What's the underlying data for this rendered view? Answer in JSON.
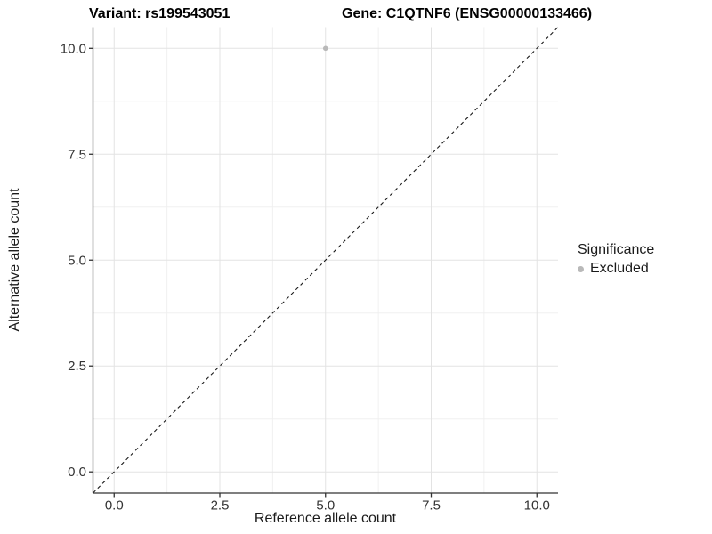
{
  "header": {
    "left_title": "Variant: rs199543051",
    "right_title": "Gene: C1QTNF6 (ENSG00000133466)"
  },
  "chart_data": {
    "type": "scatter",
    "xlabel": "Reference allele count",
    "ylabel": "Alternative allele count",
    "xlim": [
      -0.5,
      10.5
    ],
    "ylim": [
      -0.5,
      10.5
    ],
    "x_ticks": [
      0,
      2.5,
      5,
      7.5,
      10
    ],
    "y_ticks": [
      0,
      2.5,
      5,
      7.5,
      10
    ],
    "x_tick_labels": [
      "0.0",
      "2.5",
      "5.0",
      "7.5",
      "10.0"
    ],
    "y_tick_labels": [
      "0.0",
      "2.5",
      "5.0",
      "7.5",
      "10.0"
    ],
    "x_minor_ticks": [
      1.25,
      3.75,
      6.25,
      8.75
    ],
    "y_minor_ticks": [
      1.25,
      3.75,
      6.25,
      8.75
    ],
    "grid": true,
    "legend_position": "right",
    "identity_line": {
      "style": "dashed",
      "from": [
        -0.5,
        -0.5
      ],
      "to": [
        10.5,
        10.5
      ]
    },
    "series": [
      {
        "name": "Excluded",
        "color": "#b9b9b9",
        "points": [
          {
            "x": 5,
            "y": 10
          }
        ]
      }
    ]
  },
  "legend": {
    "title": "Significance",
    "items": [
      {
        "label": "Excluded",
        "color": "#b9b9b9",
        "marker": "circle"
      }
    ]
  },
  "colors": {
    "background": "#ffffff",
    "grid_major": "#e3e3e3",
    "grid_minor": "#f0f0f0",
    "axis_line": "#333333",
    "tick_label": "#333333",
    "dashed_line": "#1a1a1a"
  }
}
